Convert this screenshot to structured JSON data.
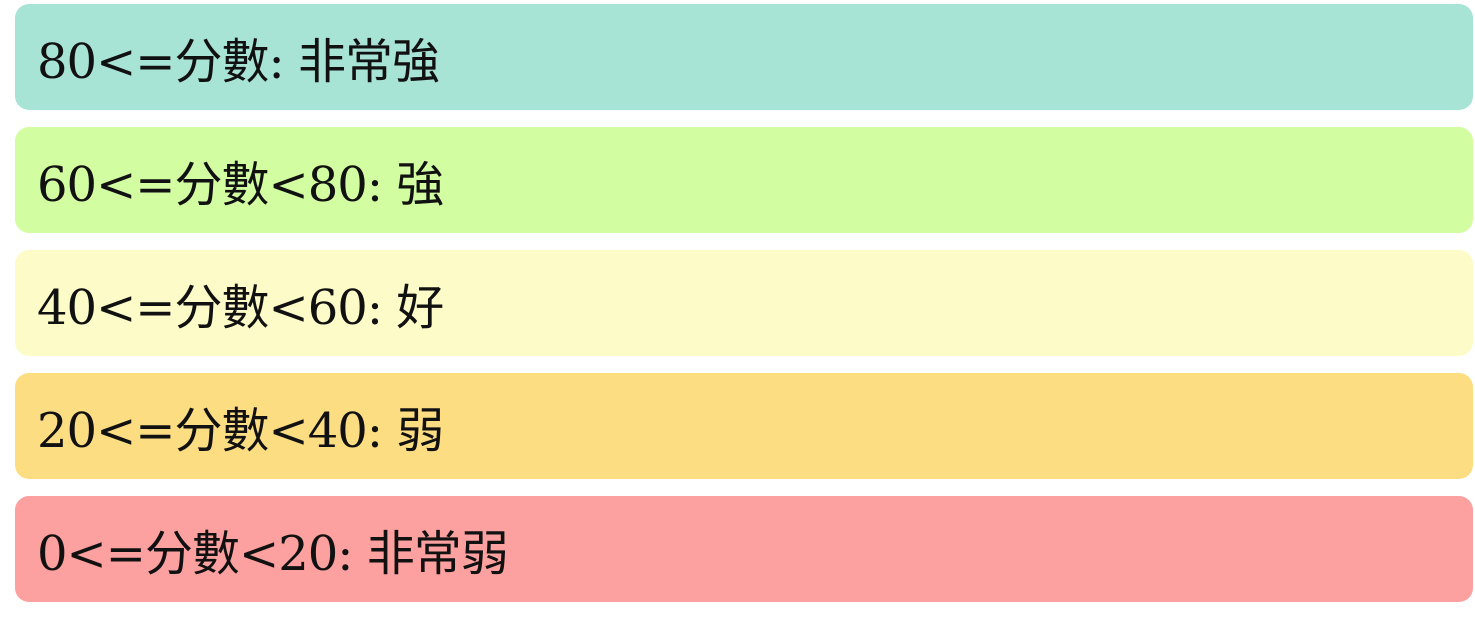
{
  "bands": [
    {
      "label": "80<=分數: 非常強",
      "color": "#a8e4d6"
    },
    {
      "label": "60<=分數<80: 強",
      "color": "#d2fda1"
    },
    {
      "label": "40<=分數<60: 好",
      "color": "#fdfcc8"
    },
    {
      "label": "20<=分數<40: 弱",
      "color": "#fddd82"
    },
    {
      "label": "0<=分數<20: 非常弱",
      "color": "#fda0a0"
    }
  ]
}
